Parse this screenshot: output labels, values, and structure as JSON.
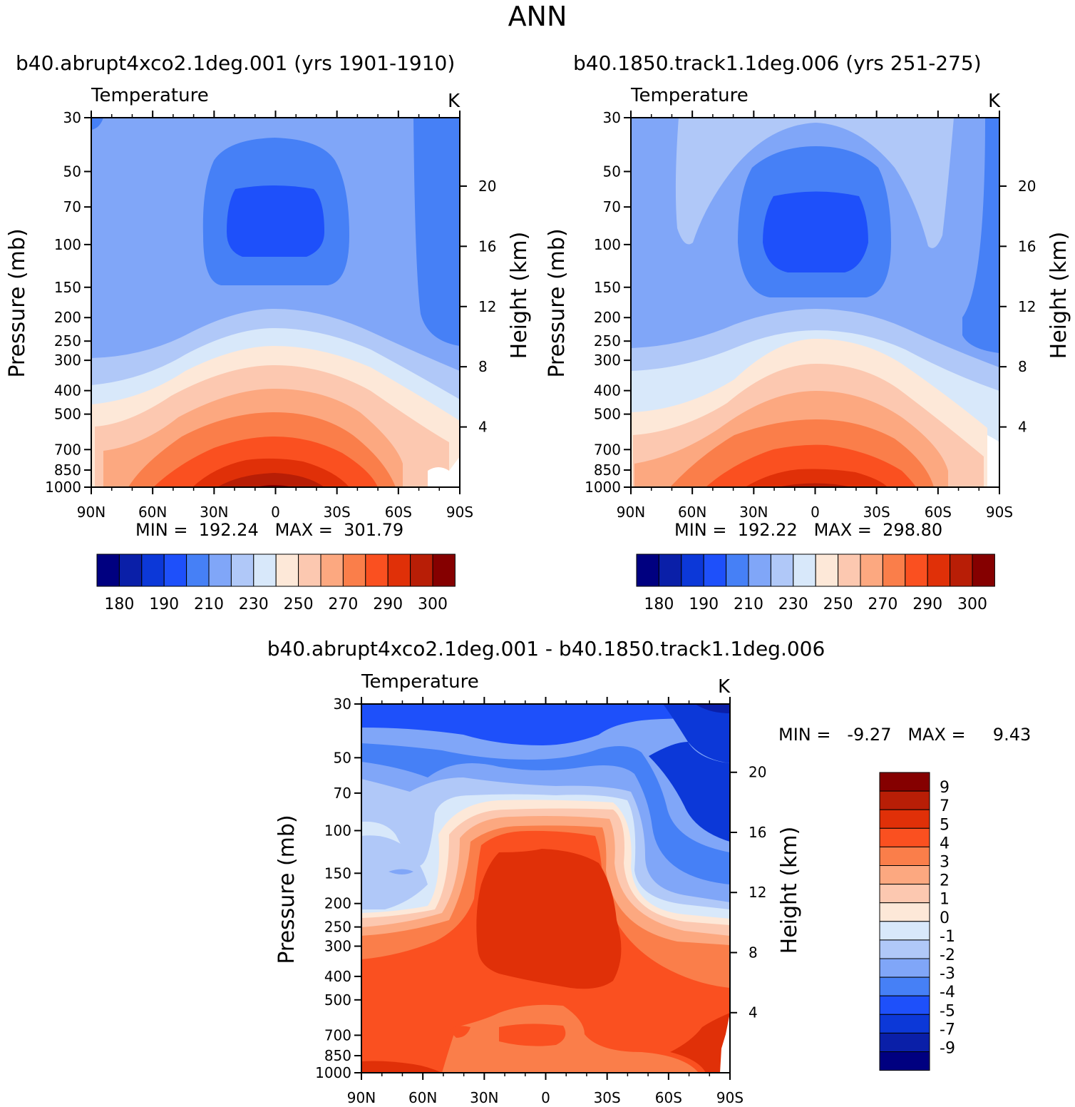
{
  "page_title": "ANN",
  "colors": {
    "abs_scale": [
      "#000080",
      "#0a1fa8",
      "#0c38d8",
      "#1e50fa",
      "#4680f6",
      "#80a6f8",
      "#b0c8f8",
      "#d8e8fa",
      "#fde8d8",
      "#fcc8b0",
      "#fca880",
      "#fa7e4a",
      "#fa5020",
      "#e03008",
      "#b81e06",
      "#850000"
    ],
    "diff_scale": [
      "#000080",
      "#0a1fa8",
      "#0c38d8",
      "#1e50fa",
      "#4680f6",
      "#80a6f8",
      "#b0c8f8",
      "#d8e8fa",
      "#fde8d8",
      "#fcc8b0",
      "#fca880",
      "#fa7e4a",
      "#fa5020",
      "#e03008",
      "#b81e06",
      "#850000"
    ]
  },
  "panels": [
    {
      "title": "b40.abrupt4xco2.1deg.001 (yrs 1901-1910)",
      "variable": "Temperature",
      "units": "K",
      "stats": "MIN =  192.24   MAX =  301.79"
    },
    {
      "title": "b40.1850.track1.1deg.006 (yrs 251-275)",
      "variable": "Temperature",
      "units": "K",
      "stats": "MIN =  192.22   MAX =  298.80"
    },
    {
      "title": "b40.abrupt4xco2.1deg.001 - b40.1850.track1.1deg.006",
      "variable": "Temperature",
      "units": "K",
      "stats": "MIN =   -9.27   MAX =     9.43"
    }
  ],
  "chart_data": [
    {
      "type": "heatmap",
      "title": "b40.abrupt4xco2.1deg.001 (yrs 1901-1910)",
      "subtitle": "Temperature",
      "units": "K",
      "xlabel": "",
      "ylabel": "Pressure (mb)",
      "ylabel_right": "Height (km)",
      "x_ticks": [
        "90N",
        "60N",
        "30N",
        "0",
        "30S",
        "60S",
        "90S"
      ],
      "y_ticks": [
        "30",
        "50",
        "70",
        "100",
        "150",
        "200",
        "250",
        "300",
        "400",
        "500",
        "700",
        "850",
        "1000"
      ],
      "y_ticks_right": [
        "20",
        "16",
        "12",
        "8",
        "4"
      ],
      "colorbar_labels": [
        "180",
        "190",
        "210",
        "230",
        "250",
        "270",
        "290",
        "300"
      ],
      "min": 192.24,
      "max": 301.79
    },
    {
      "type": "heatmap",
      "title": "b40.1850.track1.1deg.006 (yrs 251-275)",
      "subtitle": "Temperature",
      "units": "K",
      "xlabel": "",
      "ylabel": "Pressure (mb)",
      "ylabel_right": "Height (km)",
      "x_ticks": [
        "90N",
        "60N",
        "30N",
        "0",
        "30S",
        "60S",
        "90S"
      ],
      "y_ticks": [
        "30",
        "50",
        "70",
        "100",
        "150",
        "200",
        "250",
        "300",
        "400",
        "500",
        "700",
        "850",
        "1000"
      ],
      "y_ticks_right": [
        "20",
        "16",
        "12",
        "8",
        "4"
      ],
      "colorbar_labels": [
        "180",
        "190",
        "210",
        "230",
        "250",
        "270",
        "290",
        "300"
      ],
      "min": 192.22,
      "max": 298.8
    },
    {
      "type": "heatmap",
      "title": "b40.abrupt4xco2.1deg.001 - b40.1850.track1.1deg.006",
      "subtitle": "Temperature",
      "units": "K",
      "xlabel": "",
      "ylabel": "Pressure (mb)",
      "ylabel_right": "Height (km)",
      "x_ticks": [
        "90N",
        "60N",
        "30N",
        "0",
        "30S",
        "60S",
        "90S"
      ],
      "y_ticks": [
        "30",
        "50",
        "70",
        "100",
        "150",
        "200",
        "250",
        "300",
        "400",
        "500",
        "700",
        "850",
        "1000"
      ],
      "y_ticks_right": [
        "20",
        "16",
        "12",
        "8",
        "4"
      ],
      "colorbar_labels": [
        "9",
        "7",
        "5",
        "4",
        "3",
        "2",
        "1",
        "0",
        "-1",
        "-2",
        "-3",
        "-4",
        "-5",
        "-7",
        "-9"
      ],
      "min": -9.27,
      "max": 9.43
    }
  ]
}
